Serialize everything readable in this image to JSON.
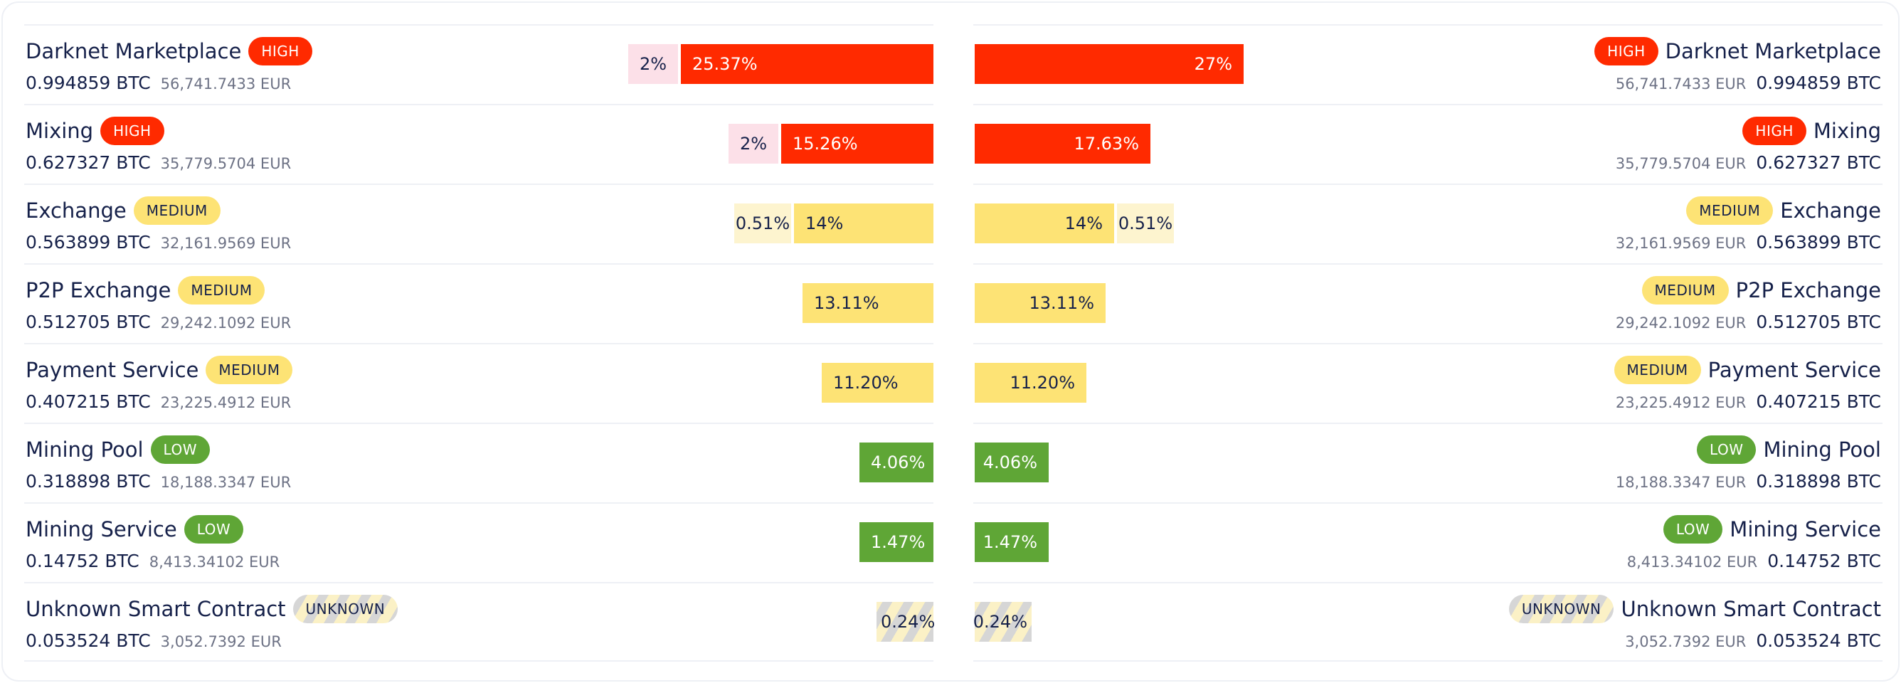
{
  "colors": {
    "high": "#ff2a00",
    "high_light": "#fce0e8",
    "medium": "#fde375",
    "medium_light": "#fdf4cf",
    "low": "#5fa636",
    "text": "#16214a",
    "muted": "#6d7285"
  },
  "left_panel": {
    "rows": [
      {
        "name": "Darknet Marketplace",
        "risk": "HIGH",
        "btc": "0.994859 BTC",
        "eur": "56,741.7433 EUR",
        "main_pct": "25.37%",
        "main_fraction": 0.2537,
        "extra_pct": "2%",
        "extra_fraction": 0.02
      },
      {
        "name": "Mixing",
        "risk": "HIGH",
        "btc": "0.627327 BTC",
        "eur": "35,779.5704 EUR",
        "main_pct": "15.26%",
        "main_fraction": 0.1526,
        "extra_pct": "2%",
        "extra_fraction": 0.02
      },
      {
        "name": "Exchange",
        "risk": "MEDIUM",
        "btc": "0.563899 BTC",
        "eur": "32,161.9569 EUR",
        "main_pct": "14%",
        "main_fraction": 0.14,
        "extra_pct": "0.51%",
        "extra_fraction": 0.0051
      },
      {
        "name": "P2P Exchange",
        "risk": "MEDIUM",
        "btc": "0.512705 BTC",
        "eur": "29,242.1092 EUR",
        "main_pct": "13.11%",
        "main_fraction": 0.1311
      },
      {
        "name": "Payment Service",
        "risk": "MEDIUM",
        "btc": "0.407215 BTC",
        "eur": "23,225.4912 EUR",
        "main_pct": "11.20%",
        "main_fraction": 0.112
      },
      {
        "name": "Mining Pool",
        "risk": "LOW",
        "btc": "0.318898 BTC",
        "eur": "18,188.3347 EUR",
        "main_pct": "4.06%",
        "main_fraction": 0.0406
      },
      {
        "name": "Mining Service",
        "risk": "LOW",
        "btc": "0.14752 BTC",
        "eur": "8,413.34102 EUR",
        "main_pct": "1.47%",
        "main_fraction": 0.0147
      },
      {
        "name": "Unknown Smart Contract",
        "risk": "UNKNOWN",
        "btc": "0.053524 BTC",
        "eur": "3,052.7392 EUR",
        "main_pct": "0.24%",
        "main_fraction": 0.0024
      }
    ]
  },
  "right_panel": {
    "rows": [
      {
        "name": "Darknet Marketplace",
        "risk": "HIGH",
        "btc": "0.994859 BTC",
        "eur": "56,741.7433 EUR",
        "main_pct": "27%",
        "main_fraction": 0.27
      },
      {
        "name": "Mixing",
        "risk": "HIGH",
        "btc": "0.627327 BTC",
        "eur": "35,779.5704 EUR",
        "main_pct": "17.63%",
        "main_fraction": 0.1763
      },
      {
        "name": "Exchange",
        "risk": "MEDIUM",
        "btc": "0.563899 BTC",
        "eur": "32,161.9569 EUR",
        "main_pct": "14%",
        "main_fraction": 0.14,
        "extra_pct": "0.51%",
        "extra_fraction": 0.0051
      },
      {
        "name": "P2P Exchange",
        "risk": "MEDIUM",
        "btc": "0.512705 BTC",
        "eur": "29,242.1092 EUR",
        "main_pct": "13.11%",
        "main_fraction": 0.1311
      },
      {
        "name": "Payment Service",
        "risk": "MEDIUM",
        "btc": "0.407215 BTC",
        "eur": "23,225.4912 EUR",
        "main_pct": "11.20%",
        "main_fraction": 0.112
      },
      {
        "name": "Mining Pool",
        "risk": "LOW",
        "btc": "0.318898 BTC",
        "eur": "18,188.3347 EUR",
        "main_pct": "4.06%",
        "main_fraction": 0.0406
      },
      {
        "name": "Mining Service",
        "risk": "LOW",
        "btc": "0.14752 BTC",
        "eur": "8,413.34102 EUR",
        "main_pct": "1.47%",
        "main_fraction": 0.0147
      },
      {
        "name": "Unknown Smart Contract",
        "risk": "UNKNOWN",
        "btc": "0.053524 BTC",
        "eur": "3,052.7392 EUR",
        "main_pct": "0.24%",
        "main_fraction": 0.0024
      }
    ]
  }
}
